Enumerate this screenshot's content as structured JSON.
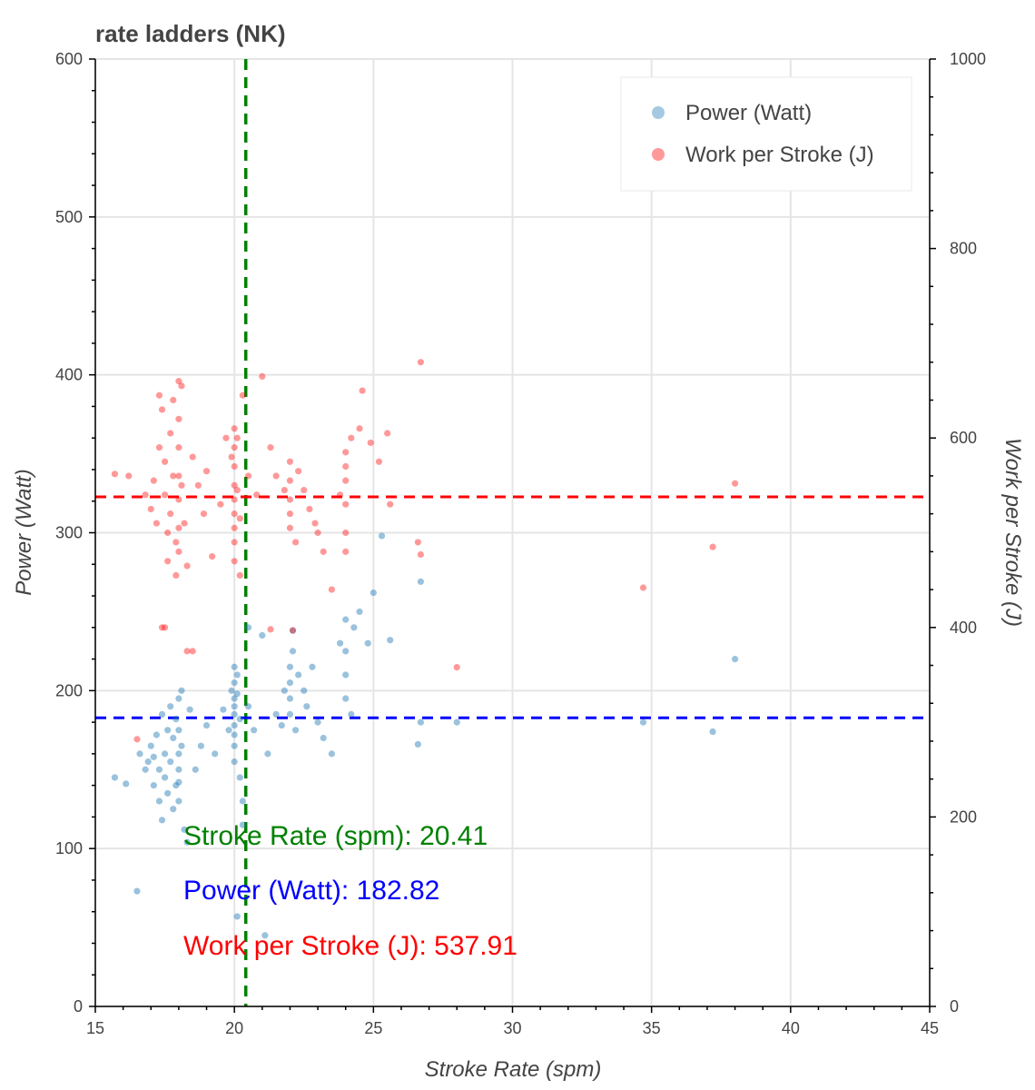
{
  "chart_data": {
    "type": "scatter",
    "title": "rate ladders (NK)",
    "xlabel": "Stroke Rate (spm)",
    "ylabel": "Power (Watt)",
    "y2label": "Work per Stroke (J)",
    "xlim": [
      15,
      45
    ],
    "ylim": [
      0,
      600
    ],
    "y2lim": [
      0,
      1000
    ],
    "xticks": [
      15,
      20,
      25,
      30,
      35,
      40,
      45
    ],
    "yticks": [
      0,
      100,
      200,
      300,
      400,
      500,
      600
    ],
    "y2ticks": [
      0,
      200,
      400,
      600,
      800,
      1000
    ],
    "grid": true,
    "legend_position": "top-right",
    "series": [
      {
        "name": "Power (Watt)",
        "axis": "left",
        "color": "#1f77b4",
        "points": [
          [
            15.7,
            145
          ],
          [
            16.1,
            141
          ],
          [
            16.5,
            73
          ],
          [
            16.6,
            160
          ],
          [
            16.8,
            150
          ],
          [
            16.9,
            155
          ],
          [
            17,
            165
          ],
          [
            17.1,
            158
          ],
          [
            17.1,
            140
          ],
          [
            17.2,
            172
          ],
          [
            17.3,
            150
          ],
          [
            17.3,
            130
          ],
          [
            17.4,
            118
          ],
          [
            17.4,
            185
          ],
          [
            17.5,
            160
          ],
          [
            17.5,
            145
          ],
          [
            17.6,
            135
          ],
          [
            17.6,
            175
          ],
          [
            17.7,
            190
          ],
          [
            17.7,
            155
          ],
          [
            17.8,
            125
          ],
          [
            17.8,
            170
          ],
          [
            17.9,
            140
          ],
          [
            17.9,
            182
          ],
          [
            18,
            195
          ],
          [
            18,
            175
          ],
          [
            18,
            160
          ],
          [
            18,
            150
          ],
          [
            18,
            142
          ],
          [
            18,
            130
          ],
          [
            18.1,
            200
          ],
          [
            18.1,
            165
          ],
          [
            18.2,
            112
          ],
          [
            18.3,
            104
          ],
          [
            18.4,
            188
          ],
          [
            18.6,
            150
          ],
          [
            18.8,
            165
          ],
          [
            19,
            178
          ],
          [
            19.3,
            160
          ],
          [
            19.6,
            188
          ],
          [
            19.8,
            175
          ],
          [
            19.9,
            200
          ],
          [
            20,
            215
          ],
          [
            20,
            205
          ],
          [
            20,
            195
          ],
          [
            20,
            190
          ],
          [
            20,
            185
          ],
          [
            20,
            178
          ],
          [
            20,
            172
          ],
          [
            20,
            165
          ],
          [
            20,
            155
          ],
          [
            20.1,
            210
          ],
          [
            20.1,
            198
          ],
          [
            20.2,
            182
          ],
          [
            20.2,
            145
          ],
          [
            20.3,
            130
          ],
          [
            20.3,
            115
          ],
          [
            20.1,
            57
          ],
          [
            20.5,
            190
          ],
          [
            20.7,
            175
          ],
          [
            21,
            235
          ],
          [
            21.1,
            45
          ],
          [
            21.2,
            160
          ],
          [
            21.5,
            185
          ],
          [
            21.7,
            178
          ],
          [
            21.8,
            200
          ],
          [
            22,
            215
          ],
          [
            22,
            205
          ],
          [
            22,
            195
          ],
          [
            22,
            185
          ],
          [
            22.1,
            225
          ],
          [
            22.2,
            175
          ],
          [
            22.3,
            210
          ],
          [
            22.5,
            200
          ],
          [
            22.6,
            190
          ],
          [
            22.8,
            215
          ],
          [
            23,
            180
          ],
          [
            23.2,
            170
          ],
          [
            23.5,
            160
          ],
          [
            23.8,
            230
          ],
          [
            24,
            245
          ],
          [
            24,
            225
          ],
          [
            24,
            210
          ],
          [
            24,
            195
          ],
          [
            24.2,
            185
          ],
          [
            24.3,
            240
          ],
          [
            24.5,
            250
          ],
          [
            24.8,
            230
          ],
          [
            25,
            262
          ],
          [
            25.3,
            298
          ],
          [
            25.6,
            232
          ],
          [
            26.7,
            269
          ],
          [
            26.7,
            180
          ],
          [
            26.6,
            166
          ],
          [
            28,
            180
          ],
          [
            34.7,
            180
          ],
          [
            37.2,
            174
          ],
          [
            38,
            220
          ],
          [
            20.5,
            240
          ],
          [
            22.1,
            238
          ]
        ]
      },
      {
        "name": "Work per Stroke (J)",
        "axis": "right",
        "color": "#ff0000",
        "points": [
          [
            15.7,
            562
          ],
          [
            16.2,
            560
          ],
          [
            16.5,
            282
          ],
          [
            16.8,
            540
          ],
          [
            17,
            525
          ],
          [
            17.1,
            555
          ],
          [
            17.2,
            510
          ],
          [
            17.3,
            590
          ],
          [
            17.3,
            645
          ],
          [
            17.4,
            630
          ],
          [
            17.4,
            400
          ],
          [
            17.5,
            575
          ],
          [
            17.5,
            540
          ],
          [
            17.6,
            500
          ],
          [
            17.6,
            470
          ],
          [
            17.7,
            605
          ],
          [
            17.7,
            520
          ],
          [
            17.8,
            560
          ],
          [
            17.8,
            640
          ],
          [
            17.9,
            490
          ],
          [
            17.9,
            455
          ],
          [
            18,
            660
          ],
          [
            18,
            620
          ],
          [
            18,
            590
          ],
          [
            18,
            560
          ],
          [
            18,
            535
          ],
          [
            18,
            505
          ],
          [
            18,
            480
          ],
          [
            18.1,
            655
          ],
          [
            18.1,
            550
          ],
          [
            18.2,
            510
          ],
          [
            18.3,
            465
          ],
          [
            18.3,
            375
          ],
          [
            18.5,
            580
          ],
          [
            18.7,
            550
          ],
          [
            18.9,
            520
          ],
          [
            19,
            565
          ],
          [
            19.2,
            475
          ],
          [
            19.5,
            530
          ],
          [
            19.7,
            600
          ],
          [
            19.9,
            580
          ],
          [
            20,
            610
          ],
          [
            20,
            590
          ],
          [
            20,
            570
          ],
          [
            20,
            550
          ],
          [
            20,
            535
          ],
          [
            20,
            520
          ],
          [
            20,
            505
          ],
          [
            20,
            490
          ],
          [
            20,
            470
          ],
          [
            20.1,
            600
          ],
          [
            20.1,
            545
          ],
          [
            20.2,
            515
          ],
          [
            20.2,
            455
          ],
          [
            20.3,
            645
          ],
          [
            20.5,
            560
          ],
          [
            20.8,
            540
          ],
          [
            21,
            665
          ],
          [
            21.3,
            590
          ],
          [
            21.5,
            560
          ],
          [
            21.8,
            545
          ],
          [
            22,
            575
          ],
          [
            22,
            555
          ],
          [
            22,
            535
          ],
          [
            22,
            520
          ],
          [
            22,
            505
          ],
          [
            22.2,
            490
          ],
          [
            22.3,
            565
          ],
          [
            22.5,
            545
          ],
          [
            22.7,
            525
          ],
          [
            22.9,
            510
          ],
          [
            23,
            500
          ],
          [
            23.2,
            480
          ],
          [
            23.5,
            440
          ],
          [
            23.8,
            540
          ],
          [
            24,
            585
          ],
          [
            24,
            570
          ],
          [
            24,
            555
          ],
          [
            24,
            530
          ],
          [
            24,
            500
          ],
          [
            24,
            480
          ],
          [
            24.2,
            600
          ],
          [
            24.5,
            610
          ],
          [
            24.6,
            650
          ],
          [
            24.9,
            595
          ],
          [
            25.2,
            575
          ],
          [
            25.5,
            605
          ],
          [
            25.6,
            530
          ],
          [
            26.6,
            490
          ],
          [
            26.7,
            680
          ],
          [
            26.7,
            477
          ],
          [
            28,
            358
          ],
          [
            34.7,
            442
          ],
          [
            37.2,
            485
          ],
          [
            38,
            552
          ],
          [
            17.5,
            400
          ],
          [
            18.5,
            375
          ],
          [
            21.3,
            398
          ],
          [
            22.1,
            397
          ]
        ]
      }
    ],
    "reference_lines": [
      {
        "axis": "x",
        "value": 20.41,
        "color": "#008000"
      },
      {
        "axis": "y",
        "value": 182.82,
        "color": "#0000ff"
      },
      {
        "axis": "y2",
        "value": 537.91,
        "color": "#ff0000"
      }
    ],
    "annotations": [
      {
        "text": "Stroke Rate (spm):  20.41",
        "color": "#008000"
      },
      {
        "text": "Power (Watt): 182.82",
        "color": "#0000ff"
      },
      {
        "text": "Work per Stroke (J): 537.91",
        "color": "#ff0000"
      }
    ]
  }
}
